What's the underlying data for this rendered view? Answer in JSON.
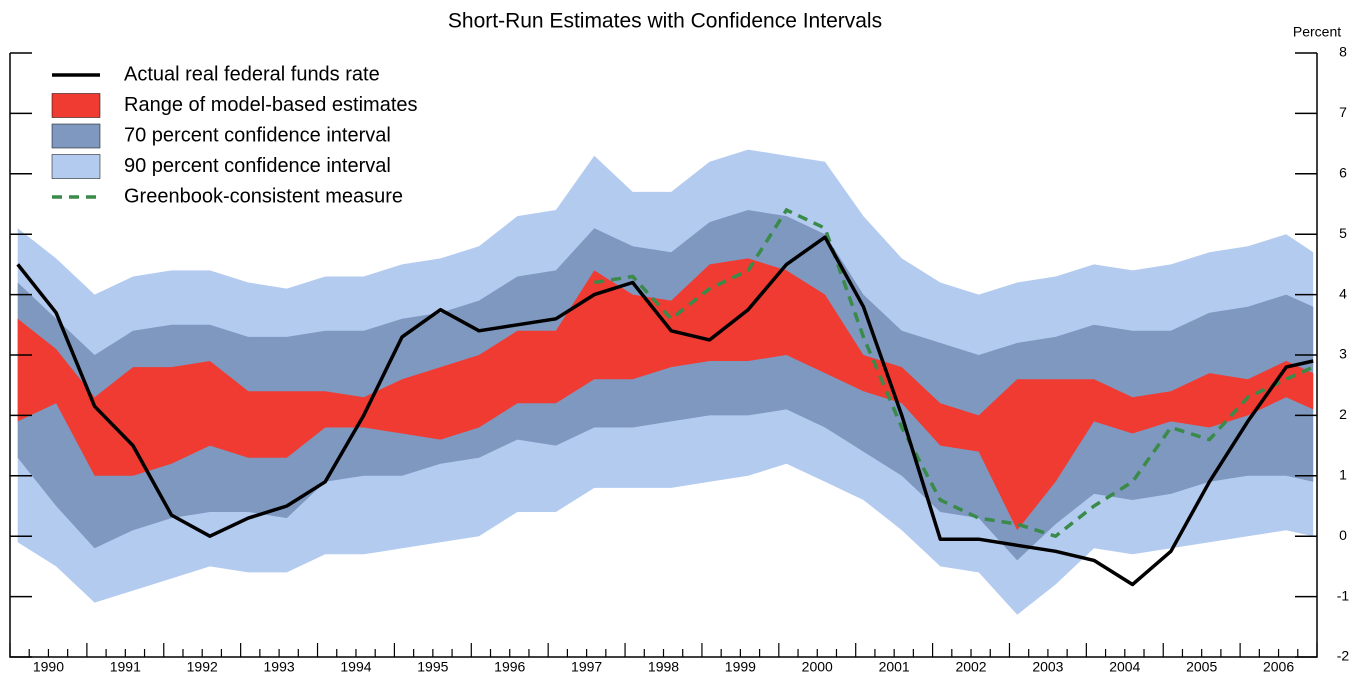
{
  "chart_data": {
    "type": "band-line",
    "title": "Short-Run Estimates with Confidence Intervals",
    "y_unit_label": "Percent",
    "legend": "upper left",
    "x": [
      1990.1,
      1990.6,
      1991.1,
      1991.6,
      1992.1,
      1992.6,
      1993.1,
      1993.6,
      1994.1,
      1994.6,
      1995.1,
      1995.6,
      1996.1,
      1996.6,
      1997.1,
      1997.6,
      1998.1,
      1998.6,
      1999.1,
      1999.6,
      2000.1,
      2000.6,
      2001.1,
      2001.6,
      2002.1,
      2002.6,
      2003.1,
      2003.6,
      2004.1,
      2004.6,
      2005.1,
      2005.6,
      2006.1,
      2006.6,
      2006.95
    ],
    "xlim": [
      1990,
      2007
    ],
    "xticks": [
      {
        "value": 1990.5,
        "label": "1990"
      },
      {
        "value": 1991.5,
        "label": "1991"
      },
      {
        "value": 1992.5,
        "label": "1992"
      },
      {
        "value": 1993.5,
        "label": "1993"
      },
      {
        "value": 1994.5,
        "label": "1994"
      },
      {
        "value": 1995.5,
        "label": "1995"
      },
      {
        "value": 1996.5,
        "label": "1996"
      },
      {
        "value": 1997.5,
        "label": "1997"
      },
      {
        "value": 1998.5,
        "label": "1998"
      },
      {
        "value": 1999.5,
        "label": "1999"
      },
      {
        "value": 2000.5,
        "label": "2000"
      },
      {
        "value": 2001.5,
        "label": "2001"
      },
      {
        "value": 2002.5,
        "label": "2002"
      },
      {
        "value": 2003.5,
        "label": "2003"
      },
      {
        "value": 2004.5,
        "label": "2004"
      },
      {
        "value": 2005.5,
        "label": "2005"
      },
      {
        "value": 2006.5,
        "label": "2006"
      }
    ],
    "ylim": [
      -2,
      8
    ],
    "yticks": [
      -2,
      -1,
      0,
      1,
      2,
      3,
      4,
      5,
      6,
      7,
      8
    ],
    "series": [
      {
        "name": "Actual real federal funds rate",
        "kind": "line",
        "color": "#000000",
        "values": [
          4.5,
          3.7,
          2.15,
          1.5,
          0.35,
          0.0,
          0.3,
          0.5,
          0.9,
          2.0,
          3.3,
          3.75,
          3.4,
          3.5,
          3.6,
          4.0,
          4.2,
          3.4,
          3.25,
          3.75,
          4.5,
          4.95,
          3.8,
          2.0,
          -0.05,
          -0.05,
          -0.15,
          -0.25,
          -0.4,
          -0.8,
          -0.25,
          0.9,
          1.9,
          2.8,
          2.9
        ]
      },
      {
        "name": "Range of model-based estimates",
        "kind": "band",
        "color": "#ef3b32",
        "lower": [
          1.9,
          2.2,
          1.0,
          1.0,
          1.2,
          1.5,
          1.3,
          1.3,
          1.8,
          1.8,
          1.7,
          1.6,
          1.8,
          2.2,
          2.2,
          2.6,
          2.6,
          2.8,
          2.9,
          2.9,
          3.0,
          2.7,
          2.4,
          2.2,
          1.5,
          1.4,
          0.1,
          0.9,
          1.9,
          1.7,
          1.9,
          1.8,
          2.0,
          2.3,
          2.1
        ],
        "upper": [
          3.6,
          3.1,
          2.3,
          2.8,
          2.8,
          2.9,
          2.4,
          2.4,
          2.4,
          2.3,
          2.6,
          2.8,
          3.0,
          3.4,
          3.4,
          4.4,
          4.0,
          3.9,
          4.5,
          4.6,
          4.4,
          4.0,
          3.0,
          2.8,
          2.2,
          2.0,
          2.6,
          2.6,
          2.6,
          2.3,
          2.4,
          2.7,
          2.6,
          2.9,
          2.7
        ]
      },
      {
        "name": "70 percent confidence interval",
        "kind": "band",
        "color": "#7f98bf",
        "lower": [
          1.3,
          0.5,
          -0.2,
          0.1,
          0.3,
          0.4,
          0.4,
          0.3,
          0.9,
          1.0,
          1.0,
          1.2,
          1.3,
          1.6,
          1.5,
          1.8,
          1.8,
          1.9,
          2.0,
          2.0,
          2.1,
          1.8,
          1.4,
          1.0,
          0.4,
          0.3,
          -0.4,
          0.2,
          0.7,
          0.6,
          0.7,
          0.9,
          1.0,
          1.0,
          0.9
        ],
        "upper": [
          4.2,
          3.6,
          3.0,
          3.4,
          3.5,
          3.5,
          3.3,
          3.3,
          3.4,
          3.4,
          3.6,
          3.7,
          3.9,
          4.3,
          4.4,
          5.1,
          4.8,
          4.7,
          5.2,
          5.4,
          5.3,
          5.0,
          4.0,
          3.4,
          3.2,
          3.0,
          3.2,
          3.3,
          3.5,
          3.4,
          3.4,
          3.7,
          3.8,
          4.0,
          3.8
        ]
      },
      {
        "name": "90 percent confidence interval",
        "kind": "band",
        "color": "#b4cbf0",
        "lower": [
          -0.1,
          -0.5,
          -1.1,
          -0.9,
          -0.7,
          -0.5,
          -0.6,
          -0.6,
          -0.3,
          -0.3,
          -0.2,
          -0.1,
          0.0,
          0.4,
          0.4,
          0.8,
          0.8,
          0.8,
          0.9,
          1.0,
          1.2,
          0.9,
          0.6,
          0.1,
          -0.5,
          -0.6,
          -1.3,
          -0.8,
          -0.2,
          -0.3,
          -0.2,
          -0.1,
          0.0,
          0.1,
          0.0
        ],
        "upper": [
          5.1,
          4.6,
          4.0,
          4.3,
          4.4,
          4.4,
          4.2,
          4.1,
          4.3,
          4.3,
          4.5,
          4.6,
          4.8,
          5.3,
          5.4,
          6.3,
          5.7,
          5.7,
          6.2,
          6.4,
          6.3,
          6.2,
          5.3,
          4.6,
          4.2,
          4.0,
          4.2,
          4.3,
          4.5,
          4.4,
          4.5,
          4.7,
          4.8,
          5.0,
          4.7
        ]
      },
      {
        "name": "Greenbook-consistent measure",
        "kind": "dashed-line",
        "color": "#3a8a4a",
        "values": [
          null,
          null,
          null,
          null,
          null,
          null,
          null,
          null,
          null,
          null,
          null,
          null,
          null,
          null,
          null,
          4.2,
          4.3,
          3.6,
          4.1,
          4.4,
          5.4,
          5.1,
          3.3,
          1.8,
          0.6,
          0.3,
          0.2,
          0.0,
          0.5,
          0.9,
          1.8,
          1.6,
          2.3,
          2.6,
          2.8
        ]
      }
    ],
    "draw_order": [
      3,
      2,
      1,
      4,
      0
    ]
  }
}
